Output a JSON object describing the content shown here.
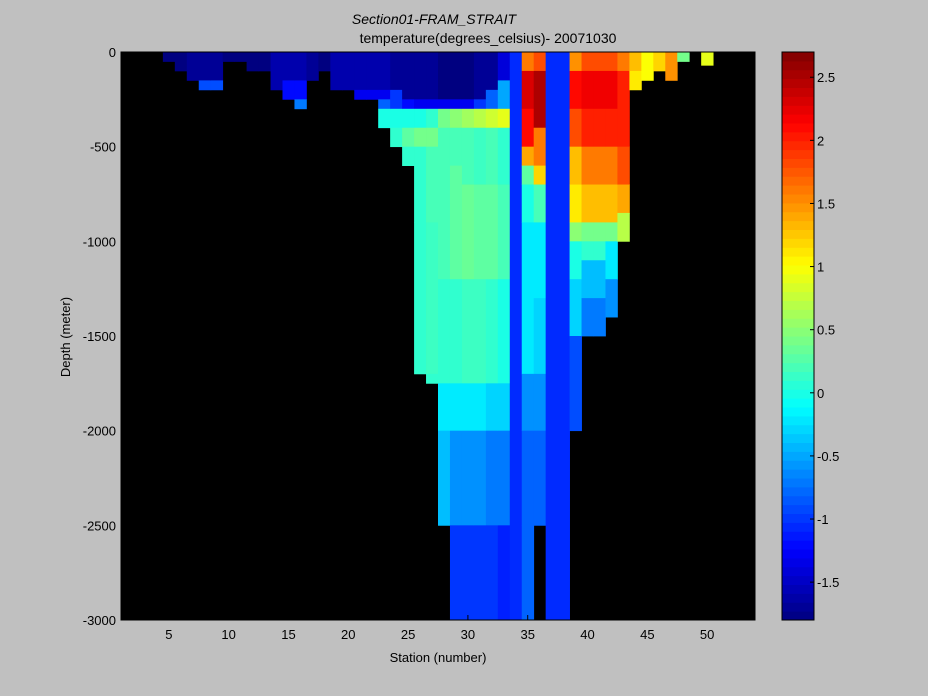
{
  "chart_data": {
    "type": "heatmap",
    "title": "Section01-FRAM_STRAIT",
    "subtitle": "temperature(degrees_celsius)- 20071030",
    "xlabel": "Station (number)",
    "ylabel": "Depth (meter)",
    "xlim": [
      1,
      54
    ],
    "ylim": [
      -3000,
      0
    ],
    "xticks": [
      5,
      10,
      15,
      20,
      25,
      30,
      35,
      40,
      45,
      50
    ],
    "yticks": [
      0,
      -500,
      -1000,
      -1500,
      -2000,
      -2500,
      -3000
    ],
    "colorbar": {
      "range": [
        -1.8,
        2.7
      ],
      "ticks": [
        2.5,
        2,
        1.5,
        1,
        0.5,
        0,
        -0.5,
        -1,
        -1.5
      ],
      "colormap": "jet"
    },
    "background_color": "#000000",
    "columns": [
      {
        "x": 5,
        "depth_max": 50,
        "cells": [
          [
            0,
            50,
            -1.8
          ]
        ]
      },
      {
        "x": 6,
        "depth_max": 100,
        "cells": [
          [
            0,
            100,
            -1.8
          ]
        ]
      },
      {
        "x": 7,
        "depth_max": 150,
        "cells": [
          [
            0,
            150,
            -1.7
          ]
        ]
      },
      {
        "x": 8,
        "depth_max": 200,
        "cells": [
          [
            0,
            150,
            -1.7
          ],
          [
            150,
            200,
            -0.9
          ]
        ]
      },
      {
        "x": 9,
        "depth_max": 200,
        "cells": [
          [
            0,
            150,
            -1.7
          ],
          [
            150,
            200,
            -0.9
          ]
        ]
      },
      {
        "x": 10,
        "depth_max": 50,
        "cells": [
          [
            0,
            50,
            -1.8
          ]
        ]
      },
      {
        "x": 11,
        "depth_max": 50,
        "cells": [
          [
            0,
            50,
            -1.8
          ]
        ]
      },
      {
        "x": 12,
        "depth_max": 100,
        "cells": [
          [
            0,
            100,
            -1.8
          ]
        ]
      },
      {
        "x": 13,
        "depth_max": 100,
        "cells": [
          [
            0,
            100,
            -1.8
          ]
        ]
      },
      {
        "x": 14,
        "depth_max": 200,
        "cells": [
          [
            0,
            150,
            -1.6
          ],
          [
            150,
            200,
            -1.6
          ]
        ]
      },
      {
        "x": 15,
        "depth_max": 250,
        "cells": [
          [
            0,
            150,
            -1.6
          ],
          [
            150,
            250,
            -1.2
          ]
        ]
      },
      {
        "x": 16,
        "depth_max": 300,
        "cells": [
          [
            0,
            150,
            -1.6
          ],
          [
            150,
            250,
            -1.2
          ],
          [
            250,
            300,
            -0.7
          ]
        ]
      },
      {
        "x": 17,
        "depth_max": 150,
        "cells": [
          [
            0,
            150,
            -1.7
          ]
        ]
      },
      {
        "x": 18,
        "depth_max": 100,
        "cells": [
          [
            0,
            100,
            -1.8
          ]
        ]
      },
      {
        "x": 19,
        "depth_max": 200,
        "cells": [
          [
            0,
            200,
            -1.6
          ]
        ]
      },
      {
        "x": 20,
        "depth_max": 200,
        "cells": [
          [
            0,
            200,
            -1.6
          ]
        ]
      },
      {
        "x": 21,
        "depth_max": 250,
        "cells": [
          [
            0,
            200,
            -1.6
          ],
          [
            200,
            250,
            -1.3
          ]
        ]
      },
      {
        "x": 22,
        "depth_max": 250,
        "cells": [
          [
            0,
            200,
            -1.6
          ],
          [
            200,
            250,
            -1.3
          ]
        ]
      },
      {
        "x": 23,
        "depth_max": 400,
        "cells": [
          [
            0,
            200,
            -1.6
          ],
          [
            200,
            250,
            -1.3
          ],
          [
            250,
            300,
            -0.8
          ],
          [
            300,
            400,
            0.0
          ]
        ]
      },
      {
        "x": 24,
        "depth_max": 500,
        "cells": [
          [
            0,
            200,
            -1.7
          ],
          [
            200,
            300,
            -1.0
          ],
          [
            300,
            400,
            0.0
          ],
          [
            400,
            500,
            0.1
          ]
        ]
      },
      {
        "x": 25,
        "depth_max": 600,
        "cells": [
          [
            0,
            250,
            -1.7
          ],
          [
            250,
            300,
            -1.2
          ],
          [
            300,
            400,
            0.0
          ],
          [
            400,
            500,
            0.3
          ],
          [
            500,
            600,
            0.1
          ]
        ]
      },
      {
        "x": 26,
        "depth_max": 1700,
        "cells": [
          [
            0,
            250,
            -1.7
          ],
          [
            250,
            300,
            -1.3
          ],
          [
            300,
            400,
            0.0
          ],
          [
            400,
            500,
            0.4
          ],
          [
            500,
            900,
            0.1
          ],
          [
            900,
            1700,
            0.1
          ]
        ]
      },
      {
        "x": 27,
        "depth_max": 1750,
        "cells": [
          [
            0,
            250,
            -1.7
          ],
          [
            250,
            300,
            -1.3
          ],
          [
            300,
            400,
            0.1
          ],
          [
            400,
            500,
            0.4
          ],
          [
            500,
            900,
            0.2
          ],
          [
            900,
            1700,
            0.15
          ],
          [
            1700,
            1750,
            0.1
          ]
        ]
      },
      {
        "x": 28,
        "depth_max": 2500,
        "cells": [
          [
            0,
            250,
            -1.8
          ],
          [
            250,
            300,
            -1.3
          ],
          [
            300,
            400,
            0.4
          ],
          [
            400,
            600,
            0.2
          ],
          [
            600,
            1200,
            0.2
          ],
          [
            1200,
            1750,
            0.1
          ],
          [
            1750,
            2000,
            -0.2
          ],
          [
            2000,
            2500,
            -0.4
          ]
        ]
      },
      {
        "x": 29,
        "depth_max": 3000,
        "cells": [
          [
            0,
            250,
            -1.8
          ],
          [
            250,
            300,
            -1.3
          ],
          [
            300,
            400,
            0.5
          ],
          [
            400,
            600,
            0.2
          ],
          [
            600,
            1200,
            0.3
          ],
          [
            1200,
            1750,
            0.1
          ],
          [
            1750,
            2000,
            -0.2
          ],
          [
            2000,
            2500,
            -0.6
          ],
          [
            2500,
            3000,
            -1.0
          ]
        ]
      },
      {
        "x": 30,
        "depth_max": 3000,
        "cells": [
          [
            0,
            250,
            -1.8
          ],
          [
            250,
            300,
            -1.3
          ],
          [
            300,
            400,
            0.6
          ],
          [
            400,
            700,
            0.2
          ],
          [
            700,
            1200,
            0.35
          ],
          [
            1200,
            1750,
            0.15
          ],
          [
            1750,
            2000,
            -0.2
          ],
          [
            2000,
            2500,
            -0.6
          ],
          [
            2500,
            3000,
            -1.0
          ]
        ]
      },
      {
        "x": 31,
        "depth_max": 3000,
        "cells": [
          [
            0,
            250,
            -1.7
          ],
          [
            250,
            300,
            -1.0
          ],
          [
            300,
            400,
            0.7
          ],
          [
            400,
            700,
            0.15
          ],
          [
            700,
            1200,
            0.3
          ],
          [
            1200,
            1750,
            0.15
          ],
          [
            1750,
            2000,
            -0.2
          ],
          [
            2000,
            2500,
            -0.6
          ],
          [
            2500,
            3000,
            -1.0
          ]
        ]
      },
      {
        "x": 32,
        "depth_max": 3000,
        "cells": [
          [
            0,
            200,
            -1.7
          ],
          [
            200,
            300,
            -0.8
          ],
          [
            300,
            400,
            0.8
          ],
          [
            400,
            700,
            0.2
          ],
          [
            700,
            1200,
            0.3
          ],
          [
            1200,
            1750,
            0.1
          ],
          [
            1750,
            2000,
            -0.3
          ],
          [
            2000,
            2500,
            -0.7
          ],
          [
            2500,
            3000,
            -1.0
          ]
        ]
      },
      {
        "x": 33,
        "depth_max": 3000,
        "cells": [
          [
            0,
            150,
            -1.4
          ],
          [
            150,
            300,
            -0.5
          ],
          [
            300,
            400,
            0.9
          ],
          [
            400,
            700,
            0.1
          ],
          [
            700,
            1200,
            0.2
          ],
          [
            1200,
            1750,
            0.0
          ],
          [
            1750,
            2000,
            -0.3
          ],
          [
            2000,
            2500,
            -0.7
          ],
          [
            2500,
            3000,
            -1.1
          ]
        ]
      },
      {
        "x": 34,
        "depth_max": 3000,
        "cells": [
          [
            0,
            3000,
            -1.05
          ]
        ]
      },
      {
        "x": 35,
        "depth_max": 3000,
        "cells": [
          [
            0,
            100,
            1.6
          ],
          [
            100,
            300,
            2.3
          ],
          [
            300,
            500,
            2.1
          ],
          [
            500,
            600,
            1.4
          ],
          [
            600,
            700,
            0.3
          ],
          [
            700,
            900,
            0.0
          ],
          [
            900,
            1700,
            -0.2
          ],
          [
            1700,
            2000,
            -0.6
          ],
          [
            2000,
            2500,
            -0.8
          ],
          [
            2500,
            3000,
            -0.8
          ]
        ]
      },
      {
        "x": 36,
        "depth_max": 2500,
        "cells": [
          [
            0,
            100,
            1.8
          ],
          [
            100,
            400,
            2.5
          ],
          [
            400,
            600,
            1.6
          ],
          [
            600,
            700,
            1.2
          ],
          [
            700,
            900,
            0.2
          ],
          [
            900,
            1300,
            -0.2
          ],
          [
            1300,
            1700,
            -0.3
          ],
          [
            1700,
            2000,
            -0.6
          ],
          [
            2000,
            2500,
            -0.8
          ]
        ]
      },
      {
        "x": 37,
        "depth_max": 3000,
        "cells": [
          [
            0,
            3000,
            -1.05
          ]
        ]
      },
      {
        "x": 38,
        "depth_max": 3000,
        "cells": [
          [
            0,
            3000,
            -1.05
          ]
        ]
      },
      {
        "x": 39,
        "depth_max": 2000,
        "cells": [
          [
            0,
            100,
            1.5
          ],
          [
            100,
            300,
            2.1
          ],
          [
            300,
            500,
            1.8
          ],
          [
            500,
            700,
            1.3
          ],
          [
            700,
            900,
            1.1
          ],
          [
            900,
            1000,
            0.5
          ],
          [
            1000,
            1200,
            0.0
          ],
          [
            1200,
            1500,
            -0.3
          ],
          [
            1500,
            2000,
            -0.9
          ]
        ]
      },
      {
        "x": 40,
        "depth_max": 1500,
        "cells": [
          [
            0,
            100,
            1.8
          ],
          [
            100,
            300,
            2.2
          ],
          [
            300,
            500,
            2.0
          ],
          [
            500,
            700,
            1.6
          ],
          [
            700,
            900,
            1.3
          ],
          [
            900,
            1000,
            0.4
          ],
          [
            1000,
            1100,
            0.1
          ],
          [
            1100,
            1300,
            -0.4
          ],
          [
            1300,
            1500,
            -0.7
          ]
        ]
      },
      {
        "x": 41,
        "depth_max": 1500,
        "cells": [
          [
            0,
            100,
            1.8
          ],
          [
            100,
            300,
            2.2
          ],
          [
            300,
            500,
            2.0
          ],
          [
            500,
            700,
            1.6
          ],
          [
            700,
            900,
            1.3
          ],
          [
            900,
            1000,
            0.4
          ],
          [
            1000,
            1100,
            0.1
          ],
          [
            1100,
            1300,
            -0.4
          ],
          [
            1300,
            1500,
            -0.7
          ]
        ]
      },
      {
        "x": 42,
        "depth_max": 1400,
        "cells": [
          [
            0,
            100,
            1.8
          ],
          [
            100,
            300,
            2.2
          ],
          [
            300,
            500,
            2.0
          ],
          [
            500,
            700,
            1.6
          ],
          [
            700,
            900,
            1.3
          ],
          [
            900,
            1000,
            0.4
          ],
          [
            1000,
            1200,
            -0.2
          ],
          [
            1200,
            1400,
            -0.6
          ]
        ]
      },
      {
        "x": 43,
        "depth_max": 1000,
        "cells": [
          [
            0,
            100,
            1.6
          ],
          [
            100,
            500,
            2.0
          ],
          [
            500,
            700,
            1.8
          ],
          [
            700,
            850,
            1.4
          ],
          [
            850,
            1000,
            0.7
          ]
        ]
      },
      {
        "x": 44,
        "depth_max": 200,
        "cells": [
          [
            0,
            100,
            1.3
          ],
          [
            100,
            200,
            1.1
          ]
        ]
      },
      {
        "x": 45,
        "depth_max": 150,
        "cells": [
          [
            0,
            150,
            1.0
          ]
        ]
      },
      {
        "x": 46,
        "depth_max": 100,
        "cells": [
          [
            0,
            100,
            1.2
          ]
        ]
      },
      {
        "x": 47,
        "depth_max": 150,
        "cells": [
          [
            0,
            150,
            1.5
          ]
        ]
      },
      {
        "x": 48,
        "depth_max": 50,
        "cells": [
          [
            0,
            50,
            0.4
          ]
        ]
      },
      {
        "x": 50,
        "depth_max": 70,
        "cells": [
          [
            0,
            70,
            0.9
          ]
        ]
      }
    ]
  }
}
